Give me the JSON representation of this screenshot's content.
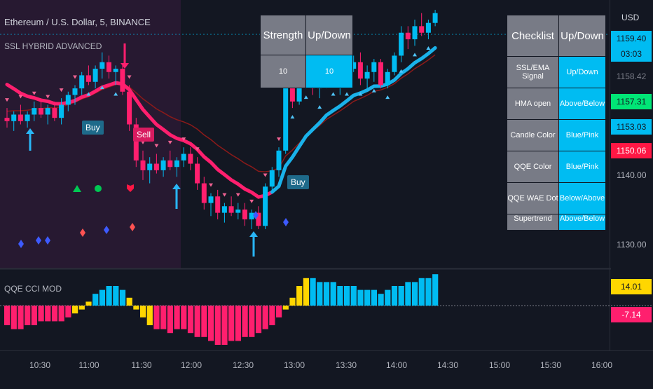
{
  "header": {
    "title": "Ethereum / U.S. Dollar, 5, BINANCE",
    "main_indicator": "SSL HYBRID ADVANCED",
    "sub_indicator": "QQE CCI MOD",
    "currency": "USD"
  },
  "strength_table": {
    "headers": [
      "Strength",
      "Up/Down"
    ],
    "values": [
      "10",
      "10"
    ]
  },
  "checklist_table": {
    "headers": [
      "Checklist",
      "Up/Down"
    ],
    "rows": [
      {
        "label": "SSL/EMA Signal",
        "value": "Up/Down"
      },
      {
        "label": "HMA open",
        "value": "Above/Below"
      },
      {
        "label": "Candle Color",
        "value": "Blue/Pink"
      },
      {
        "label": "QQE Color",
        "value": "Blue/Pink"
      },
      {
        "label": "QQE WAE Dot",
        "value": "Below/Above"
      },
      {
        "label": "Supertrend",
        "value": "Above/Below"
      }
    ]
  },
  "price_axis": {
    "ticks": [
      "1140.00",
      "1130.00"
    ],
    "tags": [
      {
        "text": "1159.40",
        "bg": "#00bcf2",
        "color": "#131722"
      },
      {
        "text": "03:03",
        "bg": "#00bcf2",
        "color": "#131722"
      },
      {
        "text": "1158.42",
        "bg": "#131722",
        "color": "#787b86"
      },
      {
        "text": "1157.31",
        "bg": "#00e676",
        "color": "#131722"
      },
      {
        "text": "1153.03",
        "bg": "#00bcf2",
        "color": "#131722"
      },
      {
        "text": "1150.06",
        "bg": "#ff1744",
        "color": "#ffffff"
      }
    ],
    "sub_tags": [
      {
        "text": "14.01",
        "bg": "#ffd600",
        "color": "#131722"
      },
      {
        "text": "-7.14",
        "bg": "#ff1f6e",
        "color": "#ffffff"
      }
    ]
  },
  "time_axis": [
    "10:30",
    "11:00",
    "11:30",
    "12:00",
    "12:30",
    "13:00",
    "13:30",
    "14:00",
    "14:30",
    "15:00",
    "15:30",
    "16:00"
  ],
  "signals": [
    {
      "text": "Buy",
      "bg": "#1e6a8a"
    },
    {
      "text": "Sell",
      "bg": "#d81b60"
    },
    {
      "text": "Buy",
      "bg": "#1e6a8a"
    }
  ],
  "colors": {
    "up": "#00bcf2",
    "down": "#ff1f6e",
    "baseline_bear": "#ff1f6e",
    "baseline_bull": "#1ab2ea",
    "ema": "#8b1a1a",
    "background": "#131722",
    "sell_zone": "#2a1a33"
  },
  "chart_data": {
    "type": "candlestick",
    "price_range": [
      1124,
      1165
    ],
    "candles": [
      {
        "o": 1147.0,
        "h": 1148.5,
        "l": 1145.5,
        "c": 1146.5
      },
      {
        "o": 1146.5,
        "h": 1148.0,
        "l": 1145.0,
        "c": 1147.5
      },
      {
        "o": 1147.5,
        "h": 1149.0,
        "l": 1146.0,
        "c": 1146.5
      },
      {
        "o": 1146.5,
        "h": 1148.0,
        "l": 1145.5,
        "c": 1147.5
      },
      {
        "o": 1147.5,
        "h": 1149.5,
        "l": 1146.5,
        "c": 1148.5
      },
      {
        "o": 1148.5,
        "h": 1150.0,
        "l": 1147.0,
        "c": 1147.5
      },
      {
        "o": 1147.5,
        "h": 1149.0,
        "l": 1146.0,
        "c": 1148.5
      },
      {
        "o": 1148.5,
        "h": 1149.5,
        "l": 1146.5,
        "c": 1147.0
      },
      {
        "o": 1147.0,
        "h": 1150.0,
        "l": 1146.0,
        "c": 1149.0
      },
      {
        "o": 1149.0,
        "h": 1151.0,
        "l": 1148.0,
        "c": 1150.5
      },
      {
        "o": 1150.5,
        "h": 1152.0,
        "l": 1149.0,
        "c": 1151.5
      },
      {
        "o": 1151.5,
        "h": 1154.0,
        "l": 1150.5,
        "c": 1153.5
      },
      {
        "o": 1153.5,
        "h": 1155.0,
        "l": 1152.0,
        "c": 1152.5
      },
      {
        "o": 1152.5,
        "h": 1155.0,
        "l": 1151.5,
        "c": 1154.5
      },
      {
        "o": 1154.5,
        "h": 1157.0,
        "l": 1153.0,
        "c": 1155.5
      },
      {
        "o": 1155.5,
        "h": 1156.5,
        "l": 1153.0,
        "c": 1154.0
      },
      {
        "o": 1154.0,
        "h": 1155.0,
        "l": 1152.0,
        "c": 1154.5
      },
      {
        "o": 1154.5,
        "h": 1155.0,
        "l": 1150.5,
        "c": 1151.0
      },
      {
        "o": 1151.0,
        "h": 1152.0,
        "l": 1145.0,
        "c": 1146.0
      },
      {
        "o": 1146.0,
        "h": 1147.0,
        "l": 1139.5,
        "c": 1140.5
      },
      {
        "o": 1140.5,
        "h": 1142.0,
        "l": 1137.5,
        "c": 1139.0
      },
      {
        "o": 1139.0,
        "h": 1141.0,
        "l": 1137.0,
        "c": 1140.0
      },
      {
        "o": 1140.0,
        "h": 1141.5,
        "l": 1138.5,
        "c": 1139.0
      },
      {
        "o": 1139.0,
        "h": 1141.0,
        "l": 1138.0,
        "c": 1140.5
      },
      {
        "o": 1140.5,
        "h": 1142.0,
        "l": 1139.0,
        "c": 1139.5
      },
      {
        "o": 1139.5,
        "h": 1141.0,
        "l": 1138.0,
        "c": 1140.5
      },
      {
        "o": 1140.5,
        "h": 1142.5,
        "l": 1139.5,
        "c": 1141.5
      },
      {
        "o": 1141.5,
        "h": 1142.5,
        "l": 1139.0,
        "c": 1140.0
      },
      {
        "o": 1140.0,
        "h": 1141.0,
        "l": 1136.0,
        "c": 1137.0
      },
      {
        "o": 1137.0,
        "h": 1138.0,
        "l": 1133.0,
        "c": 1134.0
      },
      {
        "o": 1134.0,
        "h": 1135.5,
        "l": 1132.0,
        "c": 1135.0
      },
      {
        "o": 1135.0,
        "h": 1136.0,
        "l": 1131.5,
        "c": 1132.5
      },
      {
        "o": 1132.5,
        "h": 1134.0,
        "l": 1131.0,
        "c": 1133.5
      },
      {
        "o": 1133.5,
        "h": 1135.0,
        "l": 1132.0,
        "c": 1132.5
      },
      {
        "o": 1132.5,
        "h": 1134.0,
        "l": 1131.5,
        "c": 1133.0
      },
      {
        "o": 1133.0,
        "h": 1134.0,
        "l": 1130.5,
        "c": 1131.5
      },
      {
        "o": 1131.5,
        "h": 1133.0,
        "l": 1130.0,
        "c": 1132.5
      },
      {
        "o": 1132.5,
        "h": 1133.5,
        "l": 1130.0,
        "c": 1130.5
      },
      {
        "o": 1130.5,
        "h": 1137.0,
        "l": 1130.0,
        "c": 1136.5
      },
      {
        "o": 1136.5,
        "h": 1139.5,
        "l": 1135.5,
        "c": 1139.0
      },
      {
        "o": 1139.0,
        "h": 1142.5,
        "l": 1138.0,
        "c": 1142.0
      },
      {
        "o": 1142.0,
        "h": 1159.5,
        "l": 1141.5,
        "c": 1158.5
      },
      {
        "o": 1153.5,
        "h": 1155.0,
        "l": 1148.5,
        "c": 1149.5
      },
      {
        "o": 1149.5,
        "h": 1153.0,
        "l": 1149.0,
        "c": 1152.5
      },
      {
        "o": 1152.5,
        "h": 1154.5,
        "l": 1151.5,
        "c": 1154.0
      },
      {
        "o": 1154.0,
        "h": 1155.5,
        "l": 1150.5,
        "c": 1151.5
      },
      {
        "o": 1151.5,
        "h": 1154.0,
        "l": 1150.0,
        "c": 1152.5
      },
      {
        "o": 1152.5,
        "h": 1155.0,
        "l": 1151.5,
        "c": 1154.5
      },
      {
        "o": 1154.5,
        "h": 1156.0,
        "l": 1152.0,
        "c": 1152.5
      },
      {
        "o": 1152.5,
        "h": 1154.0,
        "l": 1150.5,
        "c": 1153.0
      },
      {
        "o": 1153.0,
        "h": 1155.0,
        "l": 1152.0,
        "c": 1154.5
      },
      {
        "o": 1154.5,
        "h": 1156.5,
        "l": 1154.0,
        "c": 1155.5
      },
      {
        "o": 1155.5,
        "h": 1157.0,
        "l": 1152.0,
        "c": 1153.0
      },
      {
        "o": 1153.0,
        "h": 1155.0,
        "l": 1151.5,
        "c": 1154.0
      },
      {
        "o": 1154.0,
        "h": 1156.0,
        "l": 1152.5,
        "c": 1155.5
      },
      {
        "o": 1155.5,
        "h": 1156.0,
        "l": 1151.5,
        "c": 1152.0
      },
      {
        "o": 1152.0,
        "h": 1154.5,
        "l": 1151.5,
        "c": 1154.0
      },
      {
        "o": 1154.0,
        "h": 1157.0,
        "l": 1153.5,
        "c": 1156.5
      },
      {
        "o": 1156.5,
        "h": 1161.0,
        "l": 1155.5,
        "c": 1160.0
      },
      {
        "o": 1160.0,
        "h": 1161.0,
        "l": 1157.5,
        "c": 1159.0
      },
      {
        "o": 1159.0,
        "h": 1162.0,
        "l": 1158.0,
        "c": 1161.0
      },
      {
        "o": 1161.0,
        "h": 1163.0,
        "l": 1159.5,
        "c": 1160.0
      },
      {
        "o": 1160.0,
        "h": 1162.0,
        "l": 1159.0,
        "c": 1161.5
      },
      {
        "o": 1161.5,
        "h": 1163.5,
        "l": 1161.0,
        "c": 1163.0
      }
    ],
    "histogram": [
      -5,
      -6,
      -6,
      -5,
      -5,
      -4,
      -4,
      -4,
      -4,
      -3,
      -2,
      -1,
      1,
      3,
      4,
      5,
      5,
      4,
      2,
      -1,
      -3,
      -5,
      -6,
      -6,
      -7,
      -6,
      -6,
      -7,
      -8,
      -8,
      -9,
      -10,
      -10,
      -9,
      -9,
      -8,
      -8,
      -7,
      -6,
      -5,
      -3,
      -1,
      2,
      5,
      7,
      7,
      6,
      6,
      6,
      5,
      5,
      5,
      4,
      4,
      4,
      3,
      4,
      5,
      5,
      6,
      6,
      7,
      7,
      8
    ]
  }
}
